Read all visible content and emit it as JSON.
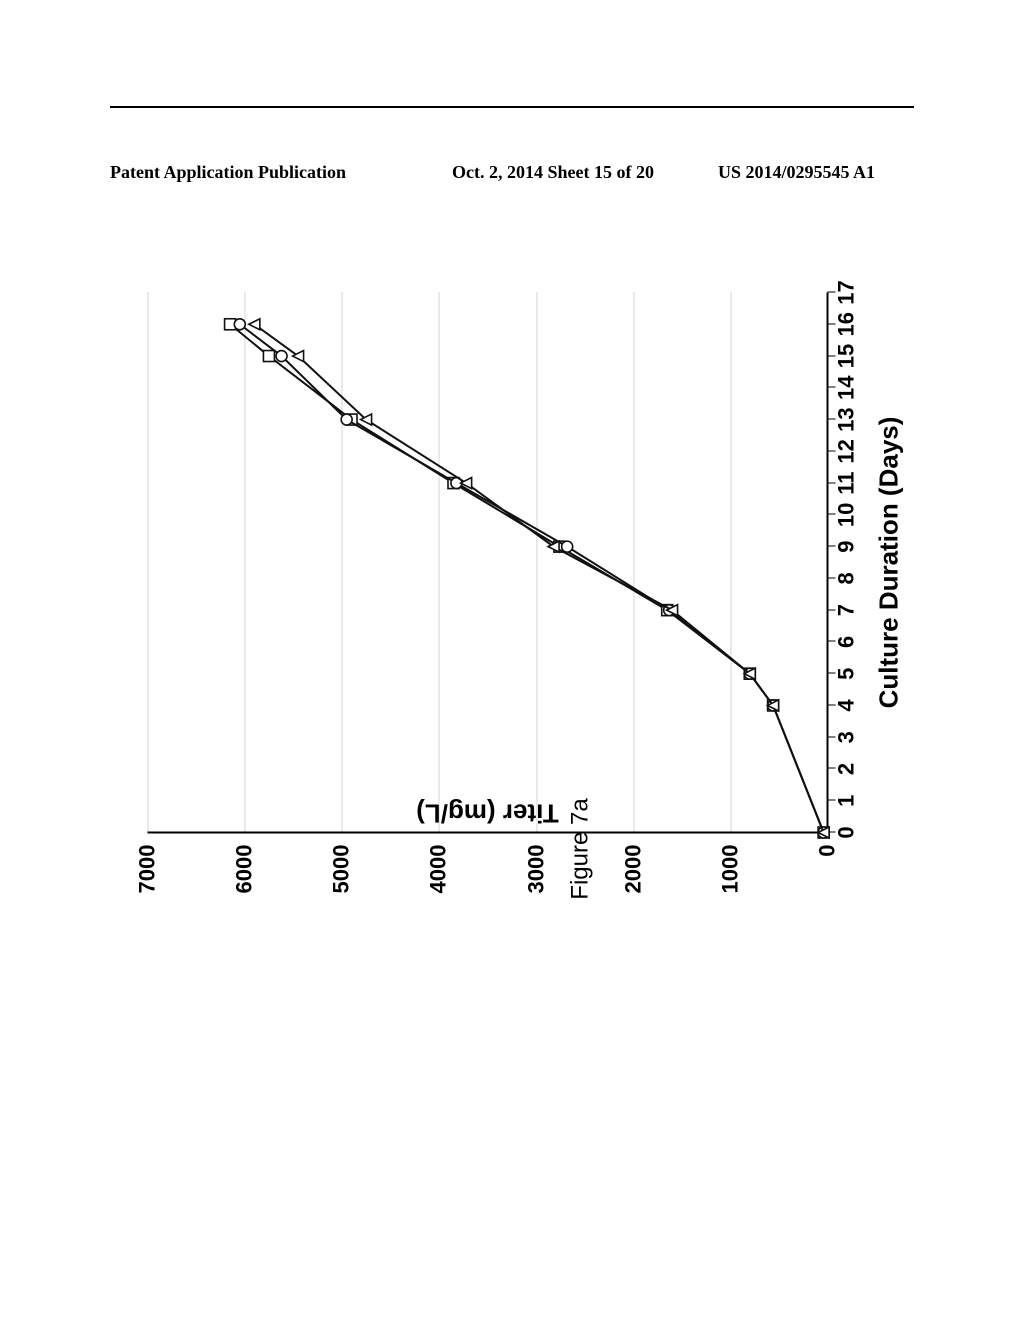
{
  "header": {
    "left": "Patent Application Publication",
    "mid": "Oct. 2, 2014   Sheet 15 of 20",
    "right": "US 2014/0295545 A1"
  },
  "figure_caption": "Figure 7a",
  "chart": {
    "type": "line",
    "x_label": "Culture Duration (Days)",
    "y_label": "Titer (mg/L)",
    "x_label_fontsize": 26,
    "y_label_fontsize": 26,
    "tick_fontsize": 22,
    "tick_fontweight": "bold",
    "xlim": [
      0,
      17
    ],
    "ylim": [
      0,
      7000
    ],
    "ytick_step": 1000,
    "xtick_step": 1,
    "yticks": [
      0,
      1000,
      2000,
      3000,
      4000,
      5000,
      6000,
      7000
    ],
    "xticks": [
      0,
      1,
      2,
      3,
      4,
      5,
      6,
      7,
      8,
      9,
      10,
      11,
      12,
      13,
      14,
      15,
      16,
      17
    ],
    "grid_color": "#aaaaaa",
    "grid_style": "dotted",
    "background_color": "#ffffff",
    "axis_color": "#000000",
    "line_width": 2,
    "marker_size": 11,
    "series": [
      {
        "name": "series-square",
        "marker": "square",
        "color": "#111111",
        "fill": "#ffffff",
        "data": [
          {
            "x": 0,
            "y": 40
          },
          {
            "x": 4,
            "y": 560
          },
          {
            "x": 5,
            "y": 800
          },
          {
            "x": 7,
            "y": 1650
          },
          {
            "x": 9,
            "y": 2760
          },
          {
            "x": 11,
            "y": 3850
          },
          {
            "x": 13,
            "y": 4900
          },
          {
            "x": 15,
            "y": 5750
          },
          {
            "x": 16,
            "y": 6150
          }
        ]
      },
      {
        "name": "series-circle",
        "marker": "circle",
        "color": "#111111",
        "fill": "#ffffff",
        "data": [
          {
            "x": 0,
            "y": 40
          },
          {
            "x": 4,
            "y": 560
          },
          {
            "x": 5,
            "y": 800
          },
          {
            "x": 7,
            "y": 1630
          },
          {
            "x": 9,
            "y": 2680
          },
          {
            "x": 11,
            "y": 3820
          },
          {
            "x": 13,
            "y": 4950
          },
          {
            "x": 15,
            "y": 5620
          },
          {
            "x": 16,
            "y": 6050
          }
        ]
      },
      {
        "name": "series-triangle",
        "marker": "triangle",
        "color": "#111111",
        "fill": "#ffffff",
        "data": [
          {
            "x": 0,
            "y": 40
          },
          {
            "x": 4,
            "y": 560
          },
          {
            "x": 5,
            "y": 800
          },
          {
            "x": 7,
            "y": 1600
          },
          {
            "x": 9,
            "y": 2820
          },
          {
            "x": 11,
            "y": 3720
          },
          {
            "x": 13,
            "y": 4750
          },
          {
            "x": 15,
            "y": 5450
          },
          {
            "x": 16,
            "y": 5900
          }
        ]
      }
    ]
  }
}
